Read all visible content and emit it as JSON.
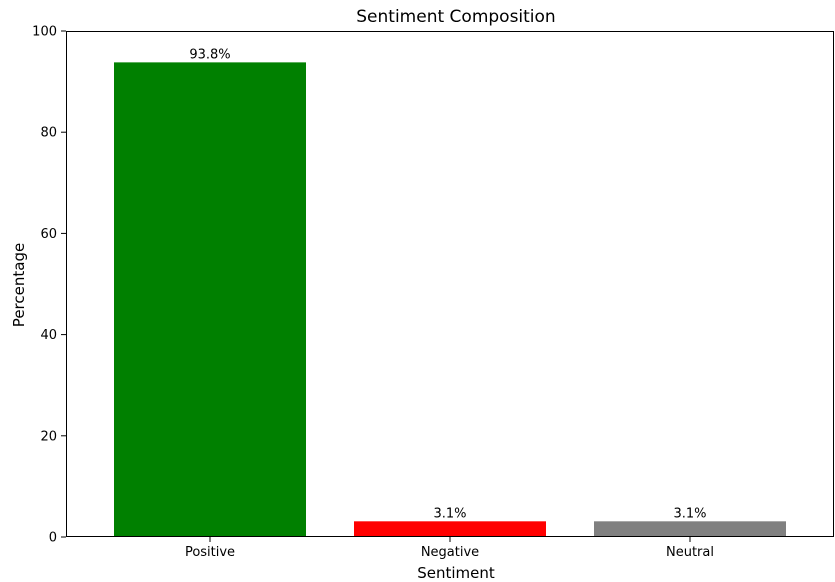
{
  "chart_data": {
    "type": "bar",
    "title": "Sentiment Composition",
    "xlabel": "Sentiment",
    "ylabel": "Percentage",
    "categories": [
      "Positive",
      "Negative",
      "Neutral"
    ],
    "values": [
      93.8,
      3.1,
      3.1
    ],
    "value_labels": [
      "93.8%",
      "3.1%",
      "3.1%"
    ],
    "colors": [
      "#008000",
      "#ff0000",
      "#808080"
    ],
    "ylim": [
      0,
      100
    ],
    "yticks": [
      0,
      20,
      40,
      60,
      80,
      100
    ],
    "grid": false,
    "legend": false
  }
}
